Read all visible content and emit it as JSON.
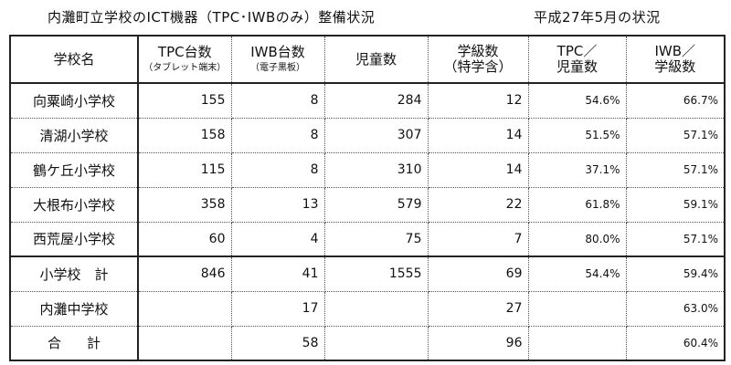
{
  "title": "内灘町立学校のICT機器（TPC･IWBのみ）整備状況",
  "date_label": "平成27年5月の状況",
  "table": {
    "headers": [
      {
        "main": "学校名",
        "sub": ""
      },
      {
        "main": "TPC台数",
        "sub": "（タブレット端末）"
      },
      {
        "main": "IWB台数",
        "sub": "（電子黒板）"
      },
      {
        "main": "児童数",
        "sub": ""
      },
      {
        "main": "学級数",
        "sub": "（特学含）"
      },
      {
        "main": "TPC／",
        "sub2": "児童数"
      },
      {
        "main": "IWB／",
        "sub2": "学級数"
      }
    ],
    "rows": [
      {
        "name": "向粟崎小学校",
        "tpc": "155",
        "iwb": "8",
        "students": "284",
        "classes": "12",
        "tpc_ratio": "54.6%",
        "iwb_ratio": "66.7%"
      },
      {
        "name": "清湖小学校",
        "tpc": "158",
        "iwb": "8",
        "students": "307",
        "classes": "14",
        "tpc_ratio": "51.5%",
        "iwb_ratio": "57.1%"
      },
      {
        "name": "鶴ケ丘小学校",
        "tpc": "115",
        "iwb": "8",
        "students": "310",
        "classes": "14",
        "tpc_ratio": "37.1%",
        "iwb_ratio": "57.1%"
      },
      {
        "name": "大根布小学校",
        "tpc": "358",
        "iwb": "13",
        "students": "579",
        "classes": "22",
        "tpc_ratio": "61.8%",
        "iwb_ratio": "59.1%"
      },
      {
        "name": "西荒屋小学校",
        "tpc": "60",
        "iwb": "4",
        "students": "75",
        "classes": "7",
        "tpc_ratio": "80.0%",
        "iwb_ratio": "57.1%"
      },
      {
        "name": "小学校　計",
        "tpc": "846",
        "iwb": "41",
        "students": "1555",
        "classes": "69",
        "tpc_ratio": "54.4%",
        "iwb_ratio": "59.4%"
      },
      {
        "name": "内灘中学校",
        "tpc": "",
        "iwb": "17",
        "students": "",
        "classes": "27",
        "tpc_ratio": "",
        "iwb_ratio": "63.0%"
      },
      {
        "name": "合計",
        "tpc": "",
        "iwb": "58",
        "students": "",
        "classes": "96",
        "tpc_ratio": "",
        "iwb_ratio": "60.4%"
      }
    ]
  }
}
